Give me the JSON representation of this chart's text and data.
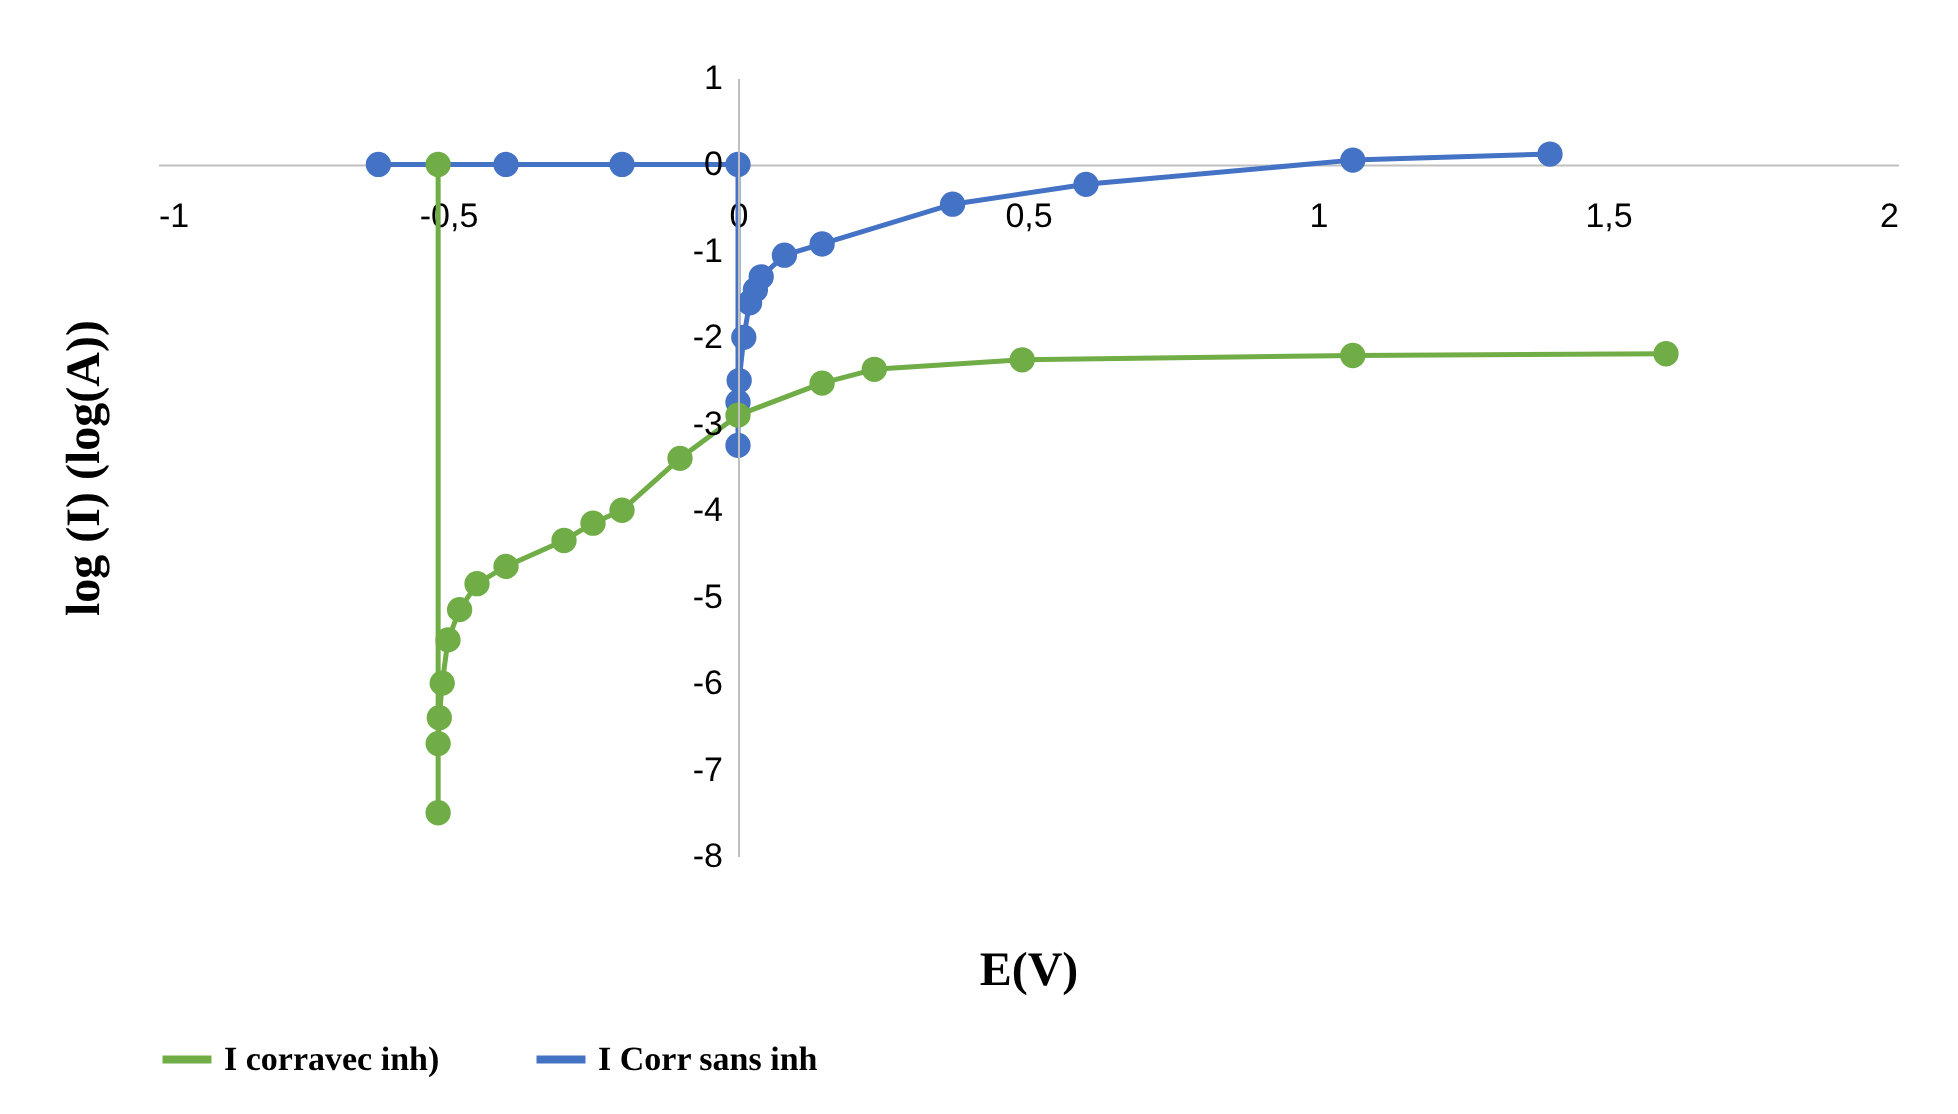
{
  "chart_data": {
    "type": "line",
    "xlabel": "E(V)",
    "ylabel": "log (I) (log(A))",
    "xlim": [
      -1,
      2
    ],
    "ylim": [
      -8,
      1
    ],
    "xticks": [
      -1,
      {
        "value": -0.5,
        "label": "-0,5"
      },
      0,
      {
        "value": 0.5,
        "label": "0,5"
      },
      1,
      {
        "value": 1.5,
        "label": "1,5"
      },
      2
    ],
    "yticks": [
      -8,
      -7,
      -6,
      -5,
      -4,
      -3,
      -2,
      -1,
      0,
      1
    ],
    "grid": false,
    "legend": "bottom",
    "marker": "circle",
    "line_style": "solid",
    "series": [
      {
        "name": "I corravec inh)",
        "color": "#70ad47",
        "x": [
          -0.517,
          -0.517,
          -0.517,
          -0.515,
          -0.51,
          -0.5,
          -0.48,
          -0.45,
          -0.4,
          -0.3,
          -0.25,
          -0.2,
          -0.1,
          0,
          0.145,
          0.235,
          0.49,
          1.06,
          1.6
        ],
        "values": [
          0,
          -7.5,
          -6.7,
          -6.4,
          -6.0,
          -5.5,
          -5.15,
          -4.85,
          -4.65,
          -4.35,
          -4.15,
          -4.0,
          -3.4,
          -2.9,
          -2.53,
          -2.37,
          -2.26,
          -2.21,
          -2.19
        ]
      },
      {
        "name": "I Corr sans inh",
        "color": "#4472c4",
        "x": [
          -0.62,
          -0.4,
          -0.2,
          0,
          0,
          0,
          0.002,
          0.01,
          0.02,
          0.03,
          0.04,
          0.08,
          0.145,
          0.37,
          0.6,
          1.06,
          1.4
        ],
        "values": [
          0,
          0,
          0,
          0,
          -3.25,
          -2.75,
          -2.5,
          -2.0,
          -1.6,
          -1.45,
          -1.3,
          -1.05,
          -0.92,
          -0.46,
          -0.23,
          0.05,
          0.12
        ]
      }
    ]
  }
}
